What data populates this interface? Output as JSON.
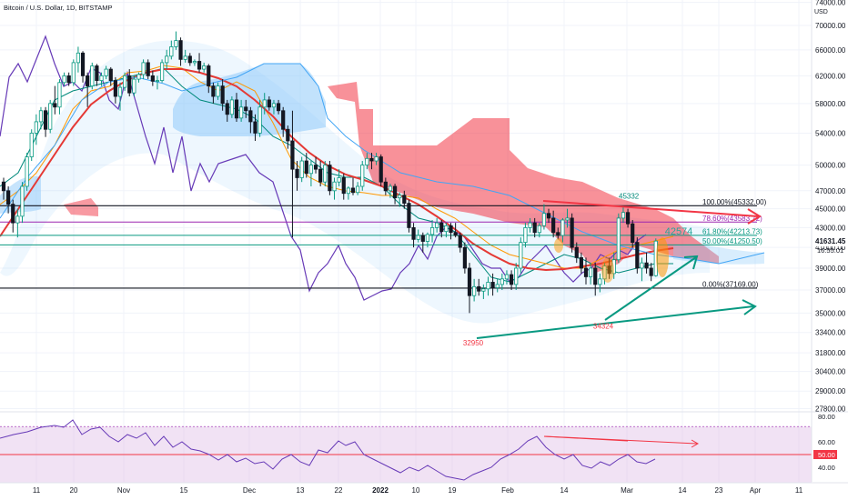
{
  "title": "Bitcoin / U.S. Dollar, 1D, BITSTAMP",
  "currency": "USD",
  "chart_data": {
    "type": "candlestick",
    "ohlc": [
      [
        48000,
        48500,
        46000,
        47000
      ],
      [
        47000,
        47500,
        44500,
        45500
      ],
      [
        45500,
        46000,
        42500,
        43500
      ],
      [
        43500,
        45000,
        42000,
        44200
      ],
      [
        44200,
        48000,
        43500,
        47500
      ],
      [
        47500,
        51500,
        47000,
        51000
      ],
      [
        51000,
        54500,
        50500,
        54000
      ],
      [
        54000,
        56500,
        52500,
        55500
      ],
      [
        55500,
        57500,
        54500,
        57000
      ],
      [
        57000,
        57500,
        53500,
        54500
      ],
      [
        54500,
        58500,
        54000,
        58000
      ],
      [
        58000,
        60500,
        56500,
        57500
      ],
      [
        57500,
        61500,
        56500,
        61000
      ],
      [
        61000,
        62500,
        60500,
        62000
      ],
      [
        62000,
        62500,
        60500,
        61000
      ],
      [
        61000,
        64500,
        60500,
        64000
      ],
      [
        64000,
        66500,
        62500,
        65500
      ],
      [
        65500,
        65800,
        61000,
        62000
      ],
      [
        62000,
        62500,
        57500,
        60500
      ],
      [
        60500,
        64000,
        60000,
        63500
      ],
      [
        63500,
        63800,
        60500,
        61300
      ],
      [
        61300,
        62500,
        60500,
        62000
      ],
      [
        62000,
        63500,
        61500,
        63000
      ],
      [
        63000,
        63300,
        60500,
        61300
      ],
      [
        61300,
        61800,
        58000,
        59000
      ],
      [
        59000,
        61000,
        57000,
        60300
      ],
      [
        60300,
        62500,
        59800,
        62000
      ],
      [
        62000,
        63000,
        59000,
        59500
      ],
      [
        59500,
        62000,
        59000,
        61500
      ],
      [
        61500,
        62500,
        61000,
        62200
      ],
      [
        62200,
        64500,
        61500,
        64000
      ],
      [
        64000,
        64500,
        61500,
        62000
      ],
      [
        62000,
        62800,
        60500,
        61200
      ],
      [
        61200,
        62000,
        60000,
        61300
      ],
      [
        61300,
        64500,
        61000,
        64000
      ],
      [
        64000,
        66000,
        63000,
        65000
      ],
      [
        65000,
        67500,
        64500,
        66500
      ],
      [
        66500,
        69000,
        66000,
        67500
      ],
      [
        67500,
        68000,
        63500,
        64500
      ],
      [
        64500,
        66000,
        64000,
        65000
      ],
      [
        65000,
        65500,
        63500,
        64000
      ],
      [
        64000,
        64500,
        63500,
        64200
      ],
      [
        64200,
        65500,
        62500,
        63000
      ],
      [
        63000,
        64000,
        62500,
        63500
      ],
      [
        63500,
        63800,
        59500,
        60500
      ],
      [
        60500,
        61000,
        58000,
        59000
      ],
      [
        59000,
        61000,
        58500,
        60500
      ],
      [
        60500,
        61500,
        57000,
        58000
      ],
      [
        58000,
        58500,
        55500,
        56500
      ],
      [
        56500,
        59000,
        56000,
        58500
      ],
      [
        58500,
        59500,
        55500,
        56000
      ],
      [
        56000,
        58500,
        55500,
        57500
      ],
      [
        57500,
        58500,
        56000,
        57000
      ],
      [
        57000,
        57500,
        54000,
        55500
      ],
      [
        55500,
        56500,
        53000,
        54000
      ],
      [
        54000,
        58500,
        53500,
        57500
      ],
      [
        57500,
        59500,
        56500,
        58500
      ],
      [
        58500,
        59000,
        57000,
        57500
      ],
      [
        57500,
        58500,
        56500,
        58000
      ],
      [
        58000,
        58500,
        56500,
        57000
      ],
      [
        57000,
        57500,
        53500,
        54500
      ],
      [
        54500,
        55000,
        52000,
        53000
      ],
      [
        53000,
        57000,
        42000,
        49500
      ],
      [
        49500,
        50500,
        47000,
        48500
      ],
      [
        48500,
        51000,
        48000,
        50500
      ],
      [
        50500,
        51500,
        48500,
        49000
      ],
      [
        49000,
        50500,
        47500,
        50000
      ],
      [
        50000,
        51000,
        49000,
        49500
      ],
      [
        49500,
        50500,
        47500,
        48000
      ],
      [
        48000,
        50500,
        47500,
        50000
      ],
      [
        50000,
        50500,
        46500,
        47000
      ],
      [
        47000,
        48500,
        46000,
        48000
      ],
      [
        48000,
        49500,
        47500,
        48500
      ],
      [
        48500,
        49000,
        46000,
        46700
      ],
      [
        46700,
        47500,
        46000,
        47300
      ],
      [
        47300,
        48500,
        46500,
        46800
      ],
      [
        46800,
        48000,
        46500,
        47500
      ],
      [
        47500,
        50500,
        47000,
        50000
      ],
      [
        50000,
        51500,
        49500,
        50800
      ],
      [
        50800,
        51500,
        49500,
        50500
      ],
      [
        50500,
        51500,
        50000,
        51000
      ],
      [
        51000,
        51300,
        47500,
        48000
      ],
      [
        48000,
        48500,
        46500,
        47000
      ],
      [
        47000,
        47800,
        46200,
        47500
      ],
      [
        47500,
        47800,
        45500,
        46200
      ],
      [
        46200,
        46800,
        45200,
        46500
      ],
      [
        46500,
        47000,
        45000,
        45600
      ],
      [
        45600,
        46000,
        42500,
        43000
      ],
      [
        43000,
        43500,
        41000,
        41800
      ],
      [
        41800,
        42800,
        41500,
        42200
      ],
      [
        42200,
        42500,
        40500,
        41600
      ],
      [
        41600,
        42500,
        41000,
        42300
      ],
      [
        42300,
        43800,
        41500,
        43000
      ],
      [
        43000,
        44000,
        42500,
        43500
      ],
      [
        43500,
        43800,
        42000,
        42600
      ],
      [
        42600,
        43500,
        42000,
        43200
      ],
      [
        43200,
        43500,
        41800,
        42500
      ],
      [
        42500,
        43500,
        42000,
        42200
      ],
      [
        42200,
        42500,
        40500,
        41000
      ],
      [
        41000,
        41500,
        38500,
        39000
      ],
      [
        39000,
        39500,
        35000,
        36500
      ],
      [
        36500,
        38000,
        36000,
        37300
      ],
      [
        37300,
        38000,
        36500,
        36900
      ],
      [
        36900,
        37500,
        36200,
        37100
      ],
      [
        37100,
        38200,
        36500,
        37700
      ],
      [
        37700,
        38500,
        36500,
        37200
      ],
      [
        37200,
        38000,
        36800,
        37500
      ],
      [
        37500,
        38500,
        37000,
        38000
      ],
      [
        38000,
        38800,
        37500,
        38400
      ],
      [
        38400,
        38800,
        37000,
        37500
      ],
      [
        37500,
        39500,
        37000,
        39000
      ],
      [
        39000,
        42000,
        38500,
        41500
      ],
      [
        41500,
        43500,
        41000,
        43000
      ],
      [
        43000,
        44000,
        42500,
        43500
      ],
      [
        43500,
        44000,
        42000,
        42500
      ],
      [
        42500,
        43500,
        42000,
        43200
      ],
      [
        43200,
        45500,
        42800,
        44500
      ],
      [
        44500,
        45000,
        43500,
        44000
      ],
      [
        44000,
        44800,
        42000,
        42500
      ],
      [
        42500,
        43000,
        41800,
        42200
      ],
      [
        42200,
        44000,
        41500,
        43800
      ],
      [
        43800,
        45000,
        43000,
        44000
      ],
      [
        44000,
        44500,
        40500,
        41000
      ],
      [
        41000,
        41500,
        39500,
        40000
      ],
      [
        40000,
        40500,
        38500,
        39000
      ],
      [
        39000,
        40000,
        37500,
        38200
      ],
      [
        38200,
        39500,
        37500,
        39000
      ],
      [
        39000,
        39500,
        36500,
        37500
      ],
      [
        37500,
        38500,
        36800,
        38000
      ],
      [
        38000,
        39500,
        37500,
        39200
      ],
      [
        39200,
        40000,
        38000,
        38500
      ],
      [
        38500,
        40500,
        38000,
        39800
      ],
      [
        39800,
        44500,
        39500,
        44000
      ],
      [
        44000,
        45300,
        43500,
        44600
      ],
      [
        44600,
        45000,
        43000,
        43400
      ],
      [
        43400,
        43800,
        41000,
        41500
      ],
      [
        41500,
        42000,
        38500,
        39000
      ],
      [
        39000,
        40000,
        37800,
        39500
      ],
      [
        39500,
        40500,
        38500,
        39000
      ],
      [
        39000,
        39500,
        37800,
        38300
      ],
      [
        38300,
        41900,
        38200,
        41631
      ]
    ],
    "price_axis_ticks": [
      "74000.00",
      "70000.00",
      "66000.00",
      "62000.00",
      "58000.00",
      "54000.00",
      "50000.00",
      "47000.00",
      "45000.00",
      "43000.00",
      "41000.00",
      "39000.00",
      "37000.00",
      "35000.00",
      "33400.00",
      "31800.00",
      "30400.00",
      "29000.00",
      "27800.00"
    ],
    "rsi_axis_ticks": [
      "80.00",
      "60.00",
      "40.00"
    ],
    "time_axis_ticks": [
      "11",
      "20",
      "Nov",
      "15",
      "Dec",
      "13",
      "22",
      "2022",
      "10",
      "19",
      "Feb",
      "14",
      "Mar",
      "14",
      "23",
      "Apr",
      "11"
    ],
    "fib_levels": [
      {
        "label": "100.00%(45332.00)",
        "price": 45332,
        "color": "#131722"
      },
      {
        "label": "78.60%(43583.72)",
        "price": 43584,
        "color": "#9c27b0"
      },
      {
        "label": "61.80%(42213.73)",
        "price": 42214,
        "color": "#089981"
      },
      {
        "label": "50.00%(41250.50)",
        "price": 41250,
        "color": "#089981"
      },
      {
        "label": "0.00%(37169.00)",
        "price": 37169,
        "color": "#131722"
      }
    ],
    "annotations": [
      {
        "text": "45332",
        "price": 45332,
        "color": "#00897b"
      },
      {
        "text": "42574",
        "price": 42574,
        "color": "#26a69a"
      },
      {
        "text": "34324",
        "price": 34324,
        "color": "#f23645"
      },
      {
        "text": "32950",
        "price": 32950,
        "color": "#f23645"
      }
    ],
    "last_price": "41631.45",
    "countdown": "16:55:01",
    "rsi_level": "50.00",
    "colors": {
      "up": "#089981",
      "down": "#131722",
      "red_line": "#f23645",
      "orange_line": "#ff9800",
      "blue_line": "#2196f3",
      "purple_line": "#673ab7",
      "cloud_red": "#f23645",
      "cloud_blue": "#90caf9",
      "arrow_red": "#f23645",
      "arrow_teal": "#089981",
      "rsi_band": "#e1bee7"
    }
  }
}
